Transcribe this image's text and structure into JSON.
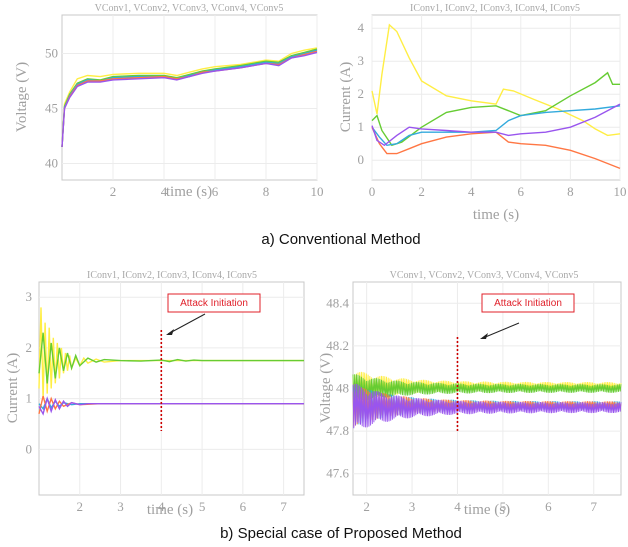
{
  "chart_data": [
    {
      "id": "a_voltage",
      "type": "line",
      "title": "VConv1, VConv2, VConv3, VConv4, VConv5",
      "xlabel": "time (s)",
      "ylabel": "Voltage (V)",
      "xlim": [
        0,
        10
      ],
      "ylim": [
        38.5,
        53.5
      ],
      "xticks": [
        "2",
        "4",
        "6",
        "8",
        "10"
      ],
      "yticks": [
        "40",
        "45",
        "50"
      ],
      "grid": true,
      "series": [
        {
          "color": "#ffee44",
          "x": [
            0,
            0.1,
            0.3,
            0.6,
            1,
            1.5,
            2,
            3,
            4,
            4.5,
            5,
            5.5,
            6,
            7,
            8,
            8.5,
            9,
            9.5,
            10
          ],
          "y": [
            41.5,
            45.4,
            46.5,
            47.7,
            48.0,
            47.9,
            48.1,
            48.2,
            48.2,
            48.0,
            48.3,
            48.6,
            48.8,
            49.0,
            49.4,
            49.3,
            50.0,
            50.3,
            50.5
          ]
        },
        {
          "color": "#66cc33",
          "x": [
            0,
            0.1,
            0.3,
            0.6,
            1,
            1.5,
            2,
            3,
            4,
            4.5,
            5,
            5.5,
            6,
            7,
            8,
            8.5,
            9,
            9.5,
            10
          ],
          "y": [
            41.5,
            45.2,
            46.3,
            47.3,
            47.7,
            47.6,
            47.9,
            48.0,
            48.0,
            47.8,
            48.1,
            48.4,
            48.6,
            48.9,
            49.3,
            49.2,
            49.8,
            50.1,
            50.4
          ]
        },
        {
          "color": "#33aadd",
          "x": [
            0,
            0.1,
            0.3,
            0.6,
            1,
            1.5,
            2,
            3,
            4,
            4.5,
            5,
            5.5,
            6,
            7,
            8,
            8.5,
            9,
            9.5,
            10
          ],
          "y": [
            41.5,
            45.1,
            46.2,
            47.2,
            47.6,
            47.5,
            47.8,
            47.9,
            47.9,
            47.7,
            48.0,
            48.3,
            48.5,
            48.8,
            49.2,
            49.1,
            49.7,
            50.0,
            50.3
          ]
        },
        {
          "color": "#ff7744",
          "x": [
            0,
            0.1,
            0.3,
            0.6,
            1,
            1.5,
            2,
            3,
            4,
            4.5,
            5,
            5.5,
            6,
            7,
            8,
            8.5,
            9,
            9.5,
            10
          ],
          "y": [
            41.5,
            45.0,
            46.1,
            47.1,
            47.5,
            47.5,
            47.7,
            47.8,
            47.9,
            47.7,
            47.9,
            48.3,
            48.4,
            48.7,
            49.1,
            49.0,
            49.6,
            49.9,
            50.2
          ]
        },
        {
          "color": "#9955ee",
          "x": [
            0,
            0.1,
            0.3,
            0.6,
            1,
            1.5,
            2,
            3,
            4,
            4.5,
            5,
            5.5,
            6,
            7,
            8,
            8.5,
            9,
            9.5,
            10
          ],
          "y": [
            41.5,
            45.0,
            46.0,
            47.0,
            47.4,
            47.4,
            47.6,
            47.7,
            47.8,
            47.6,
            47.9,
            48.2,
            48.4,
            48.7,
            49.1,
            48.9,
            49.6,
            49.8,
            50.1
          ]
        }
      ]
    },
    {
      "id": "a_current",
      "type": "line",
      "title": "IConv1, IConv2, IConv3, IConv4, IConv5",
      "xlabel": "time (s)",
      "ylabel": "Current (A)",
      "xlim": [
        0,
        10
      ],
      "ylim": [
        -0.6,
        4.4
      ],
      "xticks": [
        "0",
        "2",
        "4",
        "6",
        "8",
        "10"
      ],
      "yticks": [
        "0",
        "1",
        "2",
        "3",
        "4"
      ],
      "grid": true,
      "series": [
        {
          "color": "#ffee44",
          "x": [
            0,
            0.2,
            0.4,
            0.7,
            1,
            1.5,
            2,
            3,
            4,
            5,
            5.3,
            5.7,
            6.5,
            7.5,
            8.5,
            9,
            9.5,
            10
          ],
          "y": [
            2.1,
            1.4,
            2.6,
            4.1,
            3.9,
            3.1,
            2.4,
            1.95,
            1.8,
            1.7,
            2.15,
            2.1,
            1.85,
            1.55,
            1.2,
            0.95,
            0.75,
            0.8
          ]
        },
        {
          "color": "#66cc33",
          "x": [
            0,
            0.2,
            0.4,
            0.8,
            1.2,
            2,
            3,
            4,
            5,
            6,
            7,
            8,
            9,
            9.5,
            9.7,
            10
          ],
          "y": [
            1.2,
            1.35,
            0.9,
            0.45,
            0.55,
            1.0,
            1.45,
            1.6,
            1.65,
            1.35,
            1.5,
            1.95,
            2.35,
            2.65,
            2.3,
            2.3
          ]
        },
        {
          "color": "#33aadd",
          "x": [
            0,
            0.3,
            0.6,
            1,
            1.5,
            2,
            3,
            4,
            5,
            5.5,
            6,
            7,
            8,
            9,
            10
          ],
          "y": [
            1.0,
            0.7,
            0.45,
            0.5,
            0.75,
            0.85,
            0.85,
            0.85,
            0.9,
            1.2,
            1.35,
            1.45,
            1.5,
            1.55,
            1.65
          ]
        },
        {
          "color": "#ff7744",
          "x": [
            0,
            0.3,
            0.6,
            1,
            1.5,
            2,
            3,
            4,
            5,
            5.5,
            6,
            7,
            8,
            9,
            10
          ],
          "y": [
            1.0,
            0.5,
            0.2,
            0.2,
            0.35,
            0.5,
            0.7,
            0.8,
            0.85,
            0.55,
            0.5,
            0.45,
            0.3,
            0.05,
            -0.25
          ]
        },
        {
          "color": "#9955ee",
          "x": [
            0,
            0.2,
            0.5,
            1,
            1.5,
            2,
            3,
            4,
            5,
            5.5,
            6,
            7,
            8,
            9,
            10
          ],
          "y": [
            1.05,
            0.6,
            0.45,
            0.75,
            1.0,
            0.95,
            0.9,
            0.85,
            0.85,
            0.75,
            0.8,
            0.85,
            1.0,
            1.3,
            1.7
          ]
        }
      ]
    },
    {
      "id": "b_current",
      "type": "line",
      "title": "IConv1, IConv2, IConv3, IConv4, IConv5",
      "xlabel": "time (s)",
      "ylabel": "Current (A)",
      "xlim": [
        1,
        7.5
      ],
      "ylim": [
        -0.9,
        3.3
      ],
      "xticks": [
        "2",
        "3",
        "4",
        "5",
        "6",
        "7"
      ],
      "yticks": [
        "0",
        "1",
        "2",
        "3"
      ],
      "grid": true,
      "annotation": {
        "text": "Attack Initiation",
        "x": 4,
        "marker_color": "#cc0000"
      },
      "series": [
        {
          "color": "#ffee44",
          "x": [
            1.0,
            1.05,
            1.1,
            1.15,
            1.2,
            1.25,
            1.3,
            1.35,
            1.4,
            1.45,
            1.5,
            1.55,
            1.6,
            1.65,
            1.7,
            1.75,
            1.8,
            1.9,
            2.0,
            2.1,
            2.2,
            2.4,
            2.6,
            3.0,
            3.5,
            4.0,
            4.5,
            5.0,
            6.0,
            7.5
          ],
          "y": [
            1.2,
            2.8,
            1.0,
            2.5,
            1.1,
            2.4,
            1.2,
            2.2,
            1.3,
            2.1,
            1.4,
            2.0,
            1.5,
            1.9,
            1.55,
            1.85,
            1.6,
            1.8,
            1.65,
            1.8,
            1.7,
            1.78,
            1.72,
            1.75,
            1.75,
            1.75,
            1.75,
            1.75,
            1.75,
            1.75
          ]
        },
        {
          "color": "#66cc33",
          "x": [
            1.0,
            1.1,
            1.2,
            1.3,
            1.4,
            1.5,
            1.6,
            1.7,
            1.8,
            1.9,
            2.0,
            2.2,
            2.4,
            2.6,
            3.0,
            3.5,
            4.0,
            4.2,
            4.4,
            4.6,
            4.8,
            5.0,
            6.0,
            7.5
          ],
          "y": [
            1.5,
            2.3,
            1.3,
            2.1,
            1.4,
            2.0,
            1.55,
            1.9,
            1.6,
            1.85,
            1.65,
            1.8,
            1.72,
            1.77,
            1.75,
            1.74,
            1.76,
            1.73,
            1.77,
            1.74,
            1.76,
            1.75,
            1.75,
            1.75
          ]
        },
        {
          "color": "#33aadd",
          "x": [
            1.0,
            1.1,
            1.2,
            1.3,
            1.4,
            1.5,
            1.6,
            1.8,
            2.0,
            2.5,
            3,
            4,
            5,
            6,
            7.5
          ],
          "y": [
            0.9,
            0.8,
            1.0,
            0.82,
            0.95,
            0.85,
            0.92,
            0.88,
            0.9,
            0.9,
            0.9,
            0.9,
            0.9,
            0.9,
            0.9
          ]
        },
        {
          "color": "#ff7744",
          "x": [
            1.0,
            1.1,
            1.2,
            1.3,
            1.4,
            1.5,
            1.6,
            1.8,
            2.0,
            2.5,
            3,
            4,
            5,
            6,
            7.5
          ],
          "y": [
            0.7,
            1.05,
            0.75,
            1.0,
            0.8,
            0.95,
            0.85,
            0.92,
            0.88,
            0.9,
            0.9,
            0.9,
            0.9,
            0.9,
            0.9
          ]
        },
        {
          "color": "#9955ee",
          "x": [
            1.0,
            1.1,
            1.2,
            1.3,
            1.4,
            1.5,
            1.6,
            1.7,
            1.8,
            2.0,
            2.2,
            2.5,
            3,
            4,
            5,
            6,
            7.5
          ],
          "y": [
            0.85,
            0.7,
            1.0,
            0.75,
            0.98,
            0.8,
            0.95,
            0.85,
            0.92,
            0.88,
            0.9,
            0.9,
            0.9,
            0.9,
            0.9,
            0.9,
            0.9
          ]
        }
      ]
    },
    {
      "id": "b_voltage",
      "type": "line",
      "title": "VConv1, VConv2, VConv3, VConv4, VConv5",
      "xlabel": "time (s)",
      "ylabel": "Voltage (V)",
      "xlim": [
        1.7,
        7.6
      ],
      "ylim": [
        47.5,
        48.5
      ],
      "xticks": [
        "2",
        "3",
        "4",
        "5",
        "6",
        "7"
      ],
      "yticks": [
        "47.6",
        "47.8",
        "48",
        "48.2",
        "48.4"
      ],
      "grid": true,
      "annotation": {
        "text": "Attack Initiation",
        "x": 4,
        "marker_color": "#cc0000"
      },
      "band_series": [
        {
          "color": "#ffee44",
          "center": 48.01,
          "amp_start": 0.08,
          "amp_end": 0.02
        },
        {
          "color": "#66cc33",
          "center": 48.0,
          "amp_start": 0.07,
          "amp_end": 0.02
        },
        {
          "color": "#33aadd",
          "center": 47.92,
          "amp_start": 0.1,
          "amp_end": 0.02
        },
        {
          "color": "#ff7744",
          "center": 47.92,
          "amp_start": 0.1,
          "amp_end": 0.02
        },
        {
          "color": "#9955ee",
          "center": 47.91,
          "amp_start": 0.12,
          "amp_end": 0.025
        }
      ]
    }
  ],
  "captions": {
    "a": "a) Conventional Method",
    "b": "b) Special case of Proposed Method"
  }
}
